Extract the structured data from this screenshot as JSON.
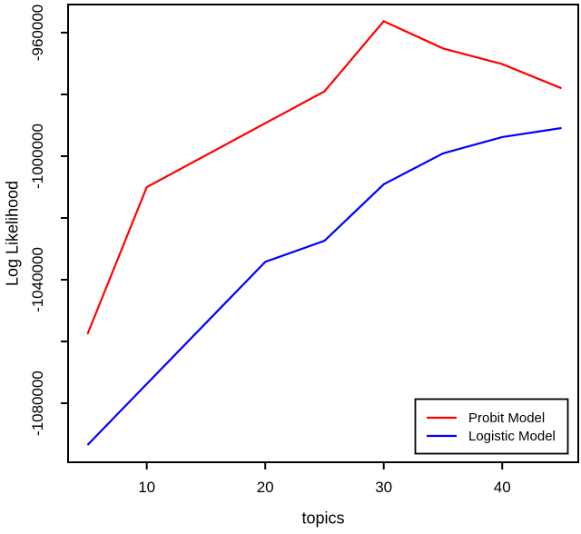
{
  "figure": {
    "background": "#FFFFFF",
    "axis_color": "#000000"
  },
  "chart_data": {
    "type": "line",
    "title": "",
    "xlabel": "topics",
    "ylabel": "Log Likelihood",
    "xlim": [
      3.36,
      46.42
    ],
    "ylim": [
      -1099100,
      -950900
    ],
    "grid": false,
    "x_ticks": [
      10,
      20,
      30,
      40
    ],
    "y_ticks": [
      -960000,
      -980000,
      -1000000,
      -1020000,
      -1040000,
      -1060000,
      -1080000
    ],
    "y_labeled_ticks": [
      {
        "value": -960000,
        "label": "-960000"
      },
      {
        "value": -1000000,
        "label": "-1000000"
      },
      {
        "value": -1040000,
        "label": "-1040000"
      },
      {
        "value": -1080000,
        "label": "-1080000"
      }
    ],
    "series": [
      {
        "name": "Probit Model",
        "color": "#FF0000",
        "x": [
          5,
          10,
          25,
          30,
          35,
          40,
          45
        ],
        "y": [
          -1057600,
          -1010000,
          -979000,
          -956300,
          -965100,
          -970200,
          -978000
        ]
      },
      {
        "name": "Logistic Model",
        "color": "#0000FF",
        "x": [
          5,
          20,
          25,
          30,
          35,
          40,
          45
        ],
        "y": [
          -1093500,
          -1034200,
          -1027400,
          -1009100,
          -999100,
          -993800,
          -990900
        ]
      }
    ],
    "legend": {
      "position": "bottom-right",
      "border": true,
      "entries": [
        {
          "label": "Probit Model",
          "color": "#FF0000"
        },
        {
          "label": "Logistic Model",
          "color": "#0000FF"
        }
      ]
    }
  }
}
